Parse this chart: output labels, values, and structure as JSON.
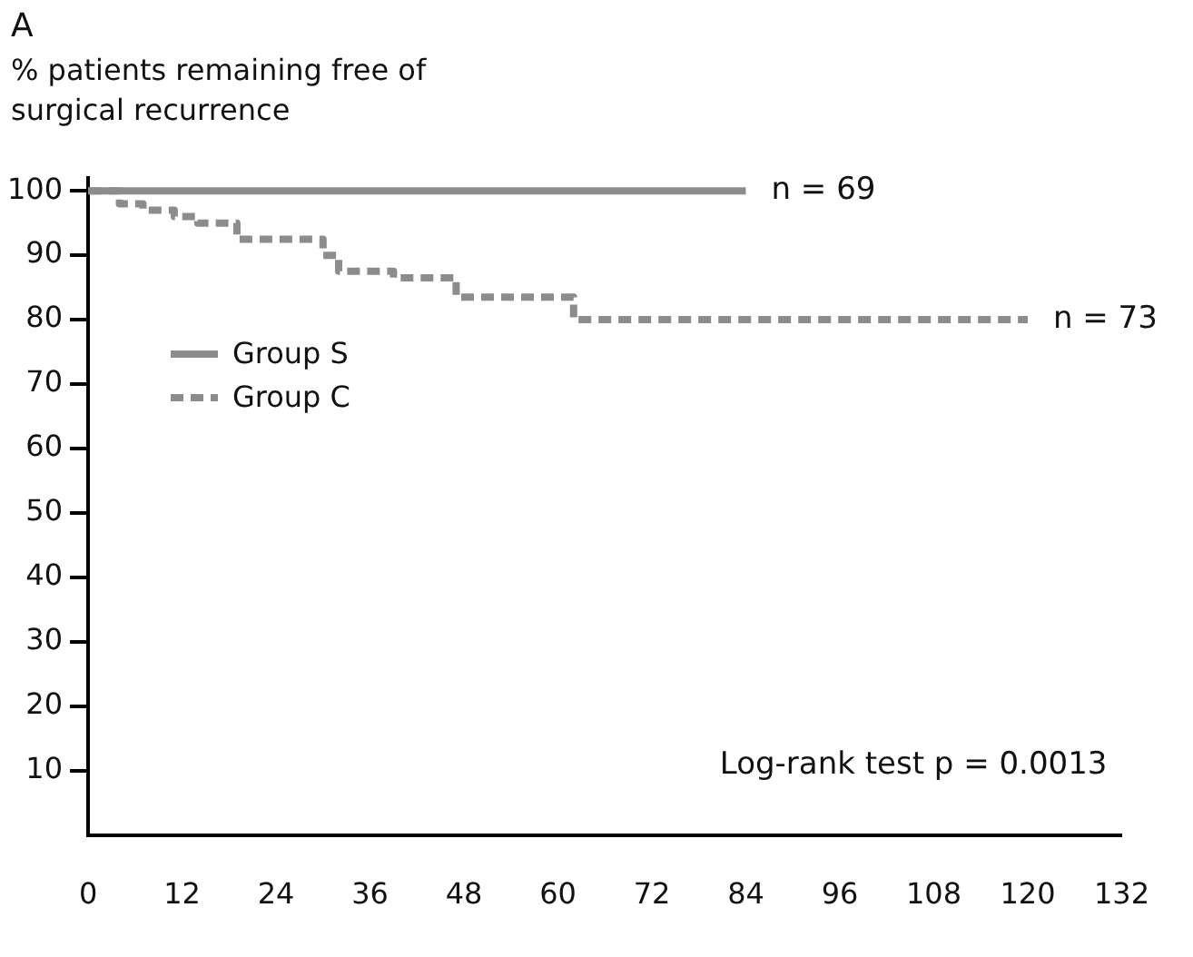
{
  "chart_data": {
    "type": "step",
    "title": "A",
    "ylabel": "% patients remaining free of surgical recurrence",
    "series": [
      {
        "name": "Group S",
        "color": "#8c8c8c",
        "line_style": "solid",
        "x": [
          0,
          84
        ],
        "values": [
          100,
          100
        ]
      },
      {
        "name": "Group C",
        "color": "#8c8c8c",
        "line_style": "dashed",
        "x": [
          0,
          4,
          7,
          11,
          14,
          19,
          30,
          32,
          39,
          47,
          62,
          120
        ],
        "values": [
          100,
          98,
          97,
          96,
          95,
          92.5,
          90,
          87.5,
          86.5,
          83.5,
          80,
          80
        ]
      }
    ],
    "xlim": [
      0,
      132
    ],
    "xticks": [
      0,
      12,
      24,
      36,
      48,
      60,
      72,
      84,
      96,
      108,
      120,
      132
    ],
    "ylim": [
      0,
      102
    ],
    "yticks": [
      10,
      20,
      30,
      40,
      50,
      60,
      70,
      80,
      90,
      100
    ],
    "grid": false,
    "legend": "center left",
    "marker": "none",
    "annotations": [
      {
        "text": "n = 69",
        "x": 84,
        "y": 100
      },
      {
        "text": "n = 73",
        "x": 120,
        "y": 80
      },
      "Log-rank test p = 0.0013"
    ]
  }
}
